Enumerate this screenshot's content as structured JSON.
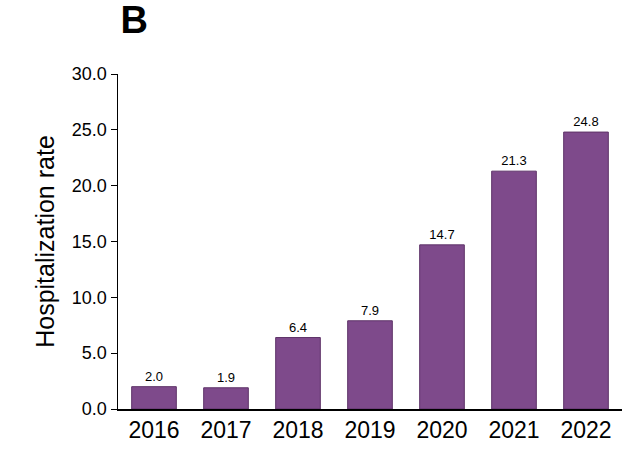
{
  "chart_data": {
    "type": "bar",
    "title": "B",
    "y_label": "Hospitalization rate",
    "categories": [
      "2016",
      "2017",
      "2018",
      "2019",
      "2020",
      "2021",
      "2022"
    ],
    "values": [
      2.0,
      1.9,
      6.4,
      7.9,
      14.7,
      21.3,
      24.8
    ],
    "value_labels": [
      "2.0",
      "1.9",
      "6.4",
      "7.9",
      "14.7",
      "21.3",
      "24.8"
    ],
    "color": "#7e4a8b",
    "ylim": [
      0,
      30
    ],
    "yticks": [
      {
        "value": 0,
        "label": "0.0"
      },
      {
        "value": 5,
        "label": "5.0"
      },
      {
        "value": 10,
        "label": "10.0"
      },
      {
        "value": 15,
        "label": "15.0"
      },
      {
        "value": 20,
        "label": "20.0"
      },
      {
        "value": 25,
        "label": "25.0"
      },
      {
        "value": 30,
        "label": "30.0"
      }
    ],
    "grid": false,
    "data_labels": true
  }
}
